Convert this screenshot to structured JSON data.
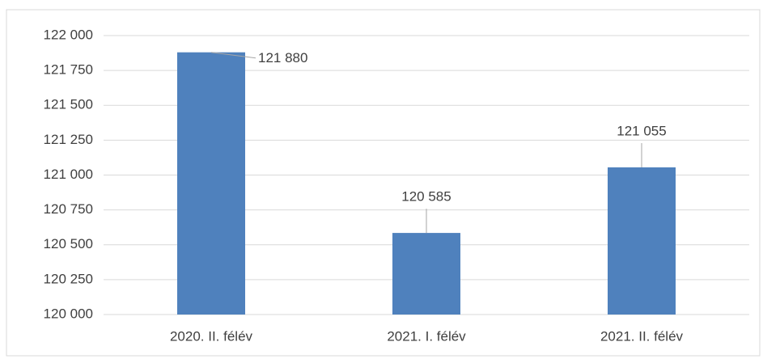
{
  "chart_data": {
    "type": "bar",
    "categories": [
      "2020. II. félév",
      "2021. I. félév",
      "2021. II. félév"
    ],
    "values": [
      121880,
      120585,
      121055
    ],
    "value_labels": [
      "121 880",
      "120 585",
      "121 055"
    ],
    "color": "#4f81bd",
    "ylim": [
      120000,
      122000
    ],
    "yticks": [
      {
        "value": 120000,
        "label": "120 000"
      },
      {
        "value": 120250,
        "label": "120 250"
      },
      {
        "value": 120500,
        "label": "120 500"
      },
      {
        "value": 120750,
        "label": "120 750"
      },
      {
        "value": 121000,
        "label": "121 000"
      },
      {
        "value": 121250,
        "label": "121 250"
      },
      {
        "value": 121500,
        "label": "121 500"
      },
      {
        "value": 121750,
        "label": "121 750"
      },
      {
        "value": 122000,
        "label": "122 000"
      }
    ],
    "grid": true
  }
}
